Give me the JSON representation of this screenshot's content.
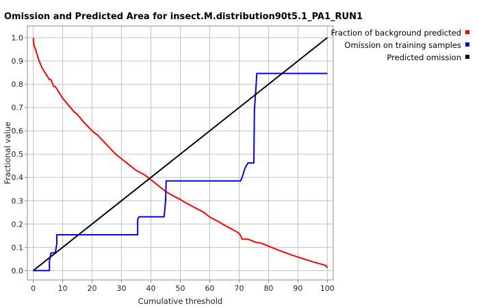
{
  "chart_data": {
    "type": "line",
    "title": "Omission and Predicted Area for insect.M.distribution90t5.1_PA1_RUN1",
    "xlabel": "Cumulative threshold",
    "ylabel": "Fractional value",
    "xlim": [
      -2,
      102
    ],
    "ylim": [
      -0.04,
      1.05
    ],
    "xticks": [
      0,
      10,
      20,
      30,
      40,
      50,
      60,
      70,
      80,
      90,
      100
    ],
    "yticks": [
      0.0,
      0.1,
      0.2,
      0.3,
      0.4,
      0.5,
      0.6,
      0.7,
      0.8,
      0.9,
      1.0
    ],
    "xtick_labels": [
      "0",
      "10",
      "20",
      "30",
      "40",
      "50",
      "60",
      "70",
      "80",
      "90",
      "100"
    ],
    "ytick_labels": [
      "0.0",
      "0.1",
      "0.2",
      "0.3",
      "0.4",
      "0.5",
      "0.6",
      "0.7",
      "0.8",
      "0.9",
      "1.0"
    ],
    "grid": true,
    "legend_position": "top-right-outside",
    "series": [
      {
        "name": "Fraction of background predicted",
        "color": "#ff0000",
        "x": [
          0,
          0.2,
          1,
          2,
          3,
          4,
          5,
          5.5,
          6,
          7,
          7.5,
          8,
          9,
          10,
          12,
          14,
          15,
          17,
          20,
          22,
          25,
          28,
          30,
          33,
          35,
          38,
          40,
          42,
          44,
          45,
          47,
          50,
          52,
          55,
          58,
          60,
          63,
          65,
          68,
          70,
          70.5,
          71,
          72,
          73,
          74,
          75,
          76,
          77,
          78,
          80,
          85,
          90,
          95,
          99.5,
          100
        ],
        "y": [
          1.0,
          0.97,
          0.94,
          0.9,
          0.87,
          0.85,
          0.83,
          0.82,
          0.82,
          0.79,
          0.79,
          0.78,
          0.76,
          0.74,
          0.71,
          0.68,
          0.67,
          0.64,
          0.6,
          0.58,
          0.54,
          0.5,
          0.48,
          0.45,
          0.43,
          0.41,
          0.39,
          0.37,
          0.35,
          0.34,
          0.325,
          0.305,
          0.29,
          0.27,
          0.25,
          0.23,
          0.21,
          0.195,
          0.175,
          0.16,
          0.15,
          0.135,
          0.135,
          0.135,
          0.13,
          0.125,
          0.12,
          0.12,
          0.115,
          0.105,
          0.08,
          0.058,
          0.038,
          0.022,
          0.012
        ]
      },
      {
        "name": "Omission on training samples",
        "color": "#0000ff",
        "x": [
          0,
          5.5,
          5.5,
          6,
          7,
          7.5,
          8,
          8,
          35.5,
          35.5,
          36,
          44.5,
          45,
          45.2,
          70.5,
          71,
          72,
          73,
          74,
          75,
          75.2,
          75.8,
          76,
          100
        ],
        "y": [
          0.0,
          0.0,
          0.04,
          0.075,
          0.077,
          0.077,
          0.115,
          0.154,
          0.154,
          0.22,
          0.231,
          0.231,
          0.3,
          0.385,
          0.385,
          0.4,
          0.44,
          0.462,
          0.462,
          0.462,
          0.69,
          0.8,
          0.846,
          0.846
        ]
      },
      {
        "name": "Predicted omission",
        "color": "#000000",
        "x": [
          0,
          100
        ],
        "y": [
          0.0,
          1.0
        ]
      }
    ]
  }
}
